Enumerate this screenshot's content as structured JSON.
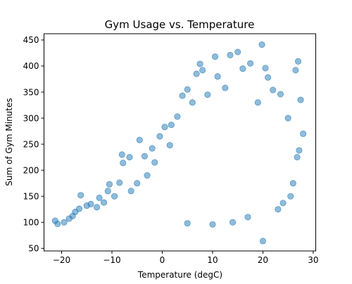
{
  "chart_data": {
    "type": "scatter",
    "title": "Gym Usage vs. Temperature",
    "xlabel": "Temperature (degC)",
    "ylabel": "Sum of Gym Minutes",
    "xlim": [
      -23.5,
      30.5
    ],
    "ylim": [
      45,
      462
    ],
    "xticks": [
      -20,
      -10,
      0,
      10,
      20,
      30
    ],
    "yticks": [
      50,
      100,
      150,
      200,
      250,
      300,
      350,
      400,
      450
    ],
    "xtick_labels": [
      "−20",
      "−10",
      "0",
      "10",
      "20",
      "30"
    ],
    "ytick_labels": [
      "50",
      "100",
      "150",
      "200",
      "250",
      "300",
      "350",
      "400",
      "450"
    ],
    "grid": false,
    "legend": "none",
    "marker_color": "#1f77b4",
    "marker_alpha": 0.5,
    "sample_points": [
      {
        "x": -21.3,
        "y": 103
      },
      {
        "x": -20.8,
        "y": 97
      },
      {
        "x": -19.5,
        "y": 100
      },
      {
        "x": -18.5,
        "y": 107
      },
      {
        "x": -17.8,
        "y": 112
      },
      {
        "x": -17.3,
        "y": 120
      },
      {
        "x": -16.5,
        "y": 126
      },
      {
        "x": -16.2,
        "y": 152
      },
      {
        "x": -15.0,
        "y": 132
      },
      {
        "x": -14.2,
        "y": 135
      },
      {
        "x": -13.0,
        "y": 129
      },
      {
        "x": -12.5,
        "y": 147
      },
      {
        "x": -11.6,
        "y": 138
      },
      {
        "x": -10.8,
        "y": 160
      },
      {
        "x": -10.5,
        "y": 173
      },
      {
        "x": -9.5,
        "y": 150
      },
      {
        "x": -8.5,
        "y": 176
      },
      {
        "x": -8.0,
        "y": 230
      },
      {
        "x": -7.8,
        "y": 214
      },
      {
        "x": -6.5,
        "y": 225
      },
      {
        "x": -6.2,
        "y": 160
      },
      {
        "x": -5.0,
        "y": 175
      },
      {
        "x": -4.5,
        "y": 258
      },
      {
        "x": -3.5,
        "y": 227
      },
      {
        "x": -3.0,
        "y": 190
      },
      {
        "x": -2.0,
        "y": 242
      },
      {
        "x": -1.5,
        "y": 215
      },
      {
        "x": -0.5,
        "y": 265
      },
      {
        "x": 0.5,
        "y": 283
      },
      {
        "x": 1.5,
        "y": 248
      },
      {
        "x": 1.8,
        "y": 287
      },
      {
        "x": 3.0,
        "y": 303
      },
      {
        "x": 4.0,
        "y": 343
      },
      {
        "x": 5.0,
        "y": 355
      },
      {
        "x": 6.0,
        "y": 330
      },
      {
        "x": 6.8,
        "y": 385
      },
      {
        "x": 7.5,
        "y": 404
      },
      {
        "x": 8.0,
        "y": 392
      },
      {
        "x": 9.0,
        "y": 345
      },
      {
        "x": 10.5,
        "y": 418
      },
      {
        "x": 11.0,
        "y": 380
      },
      {
        "x": 12.5,
        "y": 358
      },
      {
        "x": 13.5,
        "y": 421
      },
      {
        "x": 15.0,
        "y": 427
      },
      {
        "x": 16.0,
        "y": 395
      },
      {
        "x": 17.5,
        "y": 405
      },
      {
        "x": 19.0,
        "y": 330
      },
      {
        "x": 19.8,
        "y": 441
      },
      {
        "x": 20.5,
        "y": 396
      },
      {
        "x": 21.0,
        "y": 378
      },
      {
        "x": 22.0,
        "y": 354
      },
      {
        "x": 23.5,
        "y": 346
      },
      {
        "x": 25.0,
        "y": 300
      },
      {
        "x": 26.5,
        "y": 392
      },
      {
        "x": 27.0,
        "y": 409
      },
      {
        "x": 27.5,
        "y": 335
      },
      {
        "x": 28.0,
        "y": 270
      },
      {
        "x": 26.8,
        "y": 225
      },
      {
        "x": 27.2,
        "y": 238
      },
      {
        "x": 26.0,
        "y": 175
      },
      {
        "x": 25.5,
        "y": 150
      },
      {
        "x": 24.0,
        "y": 137
      },
      {
        "x": 23.0,
        "y": 125
      },
      {
        "x": 20.0,
        "y": 64
      },
      {
        "x": 17.0,
        "y": 110
      },
      {
        "x": 14.0,
        "y": 100
      },
      {
        "x": 10.0,
        "y": 96
      },
      {
        "x": 5.0,
        "y": 98
      }
    ]
  }
}
